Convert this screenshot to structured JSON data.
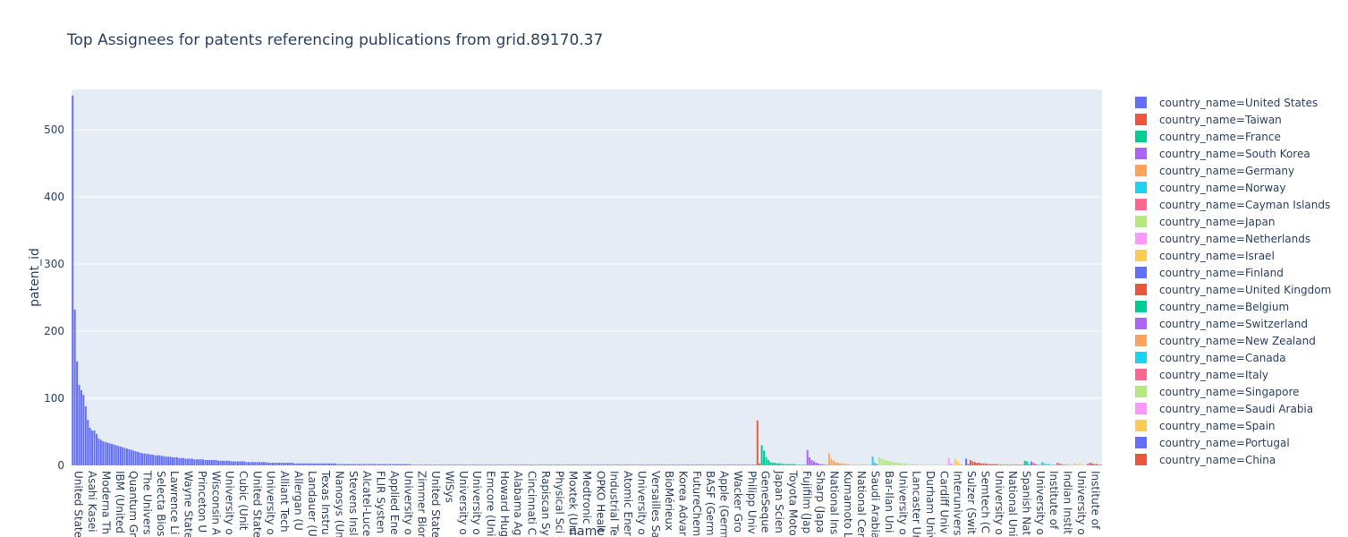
{
  "chart_data": {
    "type": "bar",
    "title": "Top Assignees for patents referencing publications from grid.89170.37",
    "xlabel": "name",
    "ylabel": "patent_id",
    "ylim": [
      0,
      560
    ],
    "yticks": [
      0,
      100,
      200,
      300,
      400,
      500
    ],
    "grid": true,
    "legend_position": "right",
    "x_tick_labels": [
      "United State",
      "Asahi Kasei",
      "Moderna Th",
      "IBM (United",
      "Quantum Gr",
      "The Univers",
      "Selecta Bios",
      "Lawrence Li",
      "Wayne State",
      "Princeton U",
      "Wisconsin A",
      "University o",
      "Cubic (Unit",
      "United State",
      "University o",
      "Alliant Tech",
      "Allergan (U",
      "Landauer (U",
      "Texas Instru",
      "Nanosys (Un",
      "Stevens Insl",
      "Alcatel-Luce",
      "FLIR Systen",
      "Applied Ene",
      "University o",
      "Zimmer Bior",
      "United State",
      "WiSys",
      "University o",
      "University o",
      "Emcore (Uni",
      "Howard Hug",
      "Alabama Ag",
      "Cincinnati C",
      "Rapiscan Sy",
      "Physical Sci",
      "Moxtek (Uni",
      "Medtronic",
      "OPKO Healt",
      "Industrial Te",
      "Atomic Ener",
      "University o",
      "Versailles Sa",
      "BioMérieux",
      "Korea Advar",
      "FutureChem",
      "BASF (Germ",
      "Apple (Germ",
      "Wacker Gro",
      "Philipp Univ",
      "GeneSeque",
      "Japan Scien",
      "Toyota Moto",
      "Fujifilm (Jap",
      "Sharp (Japa",
      "National Ins",
      "Kumamoto L",
      "National Cer",
      "Saudi Arabia",
      "Bar-Ilan Uni",
      "University o",
      "Lancaster Ur",
      "Durham Univ",
      "Cardiff Univ",
      "Interunivers",
      "Sulzer (Swit",
      "Semtech (C",
      "University o",
      "National Uni",
      "Spanish Nat",
      "University o",
      "Institute of",
      "Indian Instit",
      "University o",
      "Institute of"
    ],
    "series": [
      {
        "name": "country_name=United States",
        "color": "#636efa",
        "values": [
          551,
          232,
          155,
          120,
          112,
          105,
          88,
          68,
          56,
          52,
          52,
          47,
          40,
          38,
          36,
          35,
          34,
          33,
          32,
          31,
          30,
          29,
          28,
          27,
          26,
          25,
          24,
          23,
          22,
          21,
          20,
          19,
          18,
          18,
          17,
          17,
          16,
          16,
          15,
          15,
          15,
          14,
          14,
          13,
          13,
          13,
          12,
          12,
          12,
          11,
          11,
          11,
          10,
          10,
          10,
          10,
          9,
          9,
          9,
          9,
          9,
          8,
          8,
          8,
          8,
          8,
          8,
          7,
          7,
          7,
          7,
          7,
          7,
          6,
          6,
          6,
          6,
          6,
          6,
          6,
          5,
          5,
          5,
          5,
          5,
          5,
          5,
          5,
          5,
          5,
          4,
          4,
          4,
          4,
          4,
          4,
          4,
          4,
          4,
          4,
          4,
          4,
          3,
          3,
          3,
          3,
          3,
          3,
          3,
          3,
          3,
          3,
          3,
          3,
          3,
          3,
          3,
          3,
          3,
          3,
          3,
          3,
          2,
          2,
          2,
          2,
          2,
          2,
          2,
          2,
          2,
          2,
          2,
          2,
          2,
          2,
          2,
          2,
          2,
          2,
          2,
          2,
          2,
          2,
          2,
          2,
          2,
          2,
          2,
          2,
          2,
          2,
          2,
          2,
          2,
          2,
          1,
          1,
          1,
          1,
          1,
          1,
          1,
          1,
          1,
          1,
          1,
          1,
          1,
          1,
          1,
          1,
          1,
          1,
          1,
          1,
          1,
          1,
          1,
          1,
          1,
          1,
          1,
          1,
          1,
          1,
          1,
          1,
          1,
          1,
          1,
          1,
          1,
          1,
          1,
          1,
          1,
          1,
          1,
          1,
          1,
          1,
          1,
          1,
          1,
          1,
          1,
          1,
          1,
          1,
          1,
          1,
          1,
          1,
          1,
          1,
          1,
          1,
          1,
          1,
          1,
          1,
          1,
          1,
          1,
          1,
          1,
          1,
          1,
          1,
          1,
          1,
          1,
          1,
          1,
          1,
          1,
          1,
          1,
          1,
          1,
          1,
          1,
          1,
          1,
          1,
          1,
          1,
          1,
          1,
          1,
          1,
          1,
          1,
          1,
          1,
          1,
          1,
          1,
          1,
          1,
          1,
          1,
          1,
          1,
          1,
          1,
          1,
          1,
          1,
          1,
          1,
          1,
          1,
          1,
          1,
          1,
          1,
          1,
          1,
          1,
          1,
          1,
          1,
          1,
          1,
          1,
          1,
          1,
          1,
          1,
          1,
          1,
          1,
          1,
          1,
          1,
          1,
          1,
          1,
          1,
          1,
          1,
          1,
          1,
          1,
          1,
          1,
          1,
          1,
          1,
          1,
          1,
          1,
          1
        ]
      },
      {
        "name": "country_name=Taiwan",
        "color": "#EF553B",
        "values": [
          67,
          3
        ]
      },
      {
        "name": "country_name=France",
        "color": "#00cc96",
        "values": [
          30,
          22,
          12,
          8,
          5,
          4,
          4,
          3,
          3,
          3,
          2,
          2,
          2,
          2,
          2,
          2,
          1,
          1,
          1,
          1,
          1
        ]
      },
      {
        "name": "country_name=South Korea",
        "color": "#ab63fa",
        "values": [
          23,
          12,
          8,
          6,
          4,
          3,
          2,
          2,
          1,
          1
        ]
      },
      {
        "name": "country_name=Germany",
        "color": "#FFA15A",
        "values": [
          18,
          10,
          7,
          5,
          4,
          3,
          3,
          2,
          2,
          2,
          1,
          1,
          1,
          1,
          1,
          1,
          1,
          1,
          1,
          1
        ]
      },
      {
        "name": "country_name=Norway",
        "color": "#19d3f3",
        "values": [
          13,
          4
        ]
      },
      {
        "name": "country_name=Cayman Islands",
        "color": "#FF6692",
        "values": [
          2
        ]
      },
      {
        "name": "country_name=Japan",
        "color": "#B6E880",
        "values": [
          12,
          10,
          9,
          8,
          7,
          6,
          5,
          5,
          4,
          4,
          3,
          3,
          3,
          2,
          2,
          2,
          2,
          2,
          1,
          1,
          1,
          1,
          1,
          1,
          1,
          1,
          1,
          1,
          1,
          1,
          1,
          1
        ]
      },
      {
        "name": "country_name=Netherlands",
        "color": "#FF97FF",
        "values": [
          11,
          3,
          2
        ]
      },
      {
        "name": "country_name=Israel",
        "color": "#FECB52",
        "values": [
          10,
          6,
          3,
          2,
          1
        ]
      },
      {
        "name": "country_name=Finland",
        "color": "#636efa",
        "values": [
          10,
          2
        ]
      },
      {
        "name": "country_name=United Kingdom",
        "color": "#EF553B",
        "values": [
          8,
          6,
          5,
          4,
          4,
          3,
          3,
          3,
          2,
          2,
          2,
          2,
          2,
          1,
          1,
          1,
          1,
          1,
          1,
          1,
          1,
          1,
          1,
          1,
          1
        ]
      },
      {
        "name": "country_name=Belgium",
        "color": "#00cc96",
        "values": [
          7,
          6,
          2
        ]
      },
      {
        "name": "country_name=Switzerland",
        "color": "#ab63fa",
        "values": [
          6,
          4,
          2,
          1
        ]
      },
      {
        "name": "country_name=New Zealand",
        "color": "#FFA15A",
        "values": [
          2
        ]
      },
      {
        "name": "country_name=Canada",
        "color": "#19d3f3",
        "values": [
          5,
          3,
          2,
          2,
          1,
          1,
          1
        ]
      },
      {
        "name": "country_name=Italy",
        "color": "#FF6692",
        "values": [
          4,
          3,
          2,
          1,
          1
        ]
      },
      {
        "name": "country_name=Singapore",
        "color": "#B6E880",
        "values": [
          3,
          2,
          1
        ]
      },
      {
        "name": "country_name=Saudi Arabia",
        "color": "#FF97FF",
        "values": [
          3,
          1
        ]
      },
      {
        "name": "country_name=Spain",
        "color": "#FECB52",
        "values": [
          3,
          2,
          1,
          1
        ]
      },
      {
        "name": "country_name=Portugal",
        "color": "#636efa",
        "values": [
          2
        ]
      },
      {
        "name": "country_name=China",
        "color": "#EF553B",
        "values": [
          4,
          3,
          2,
          2,
          1,
          1
        ]
      }
    ]
  }
}
